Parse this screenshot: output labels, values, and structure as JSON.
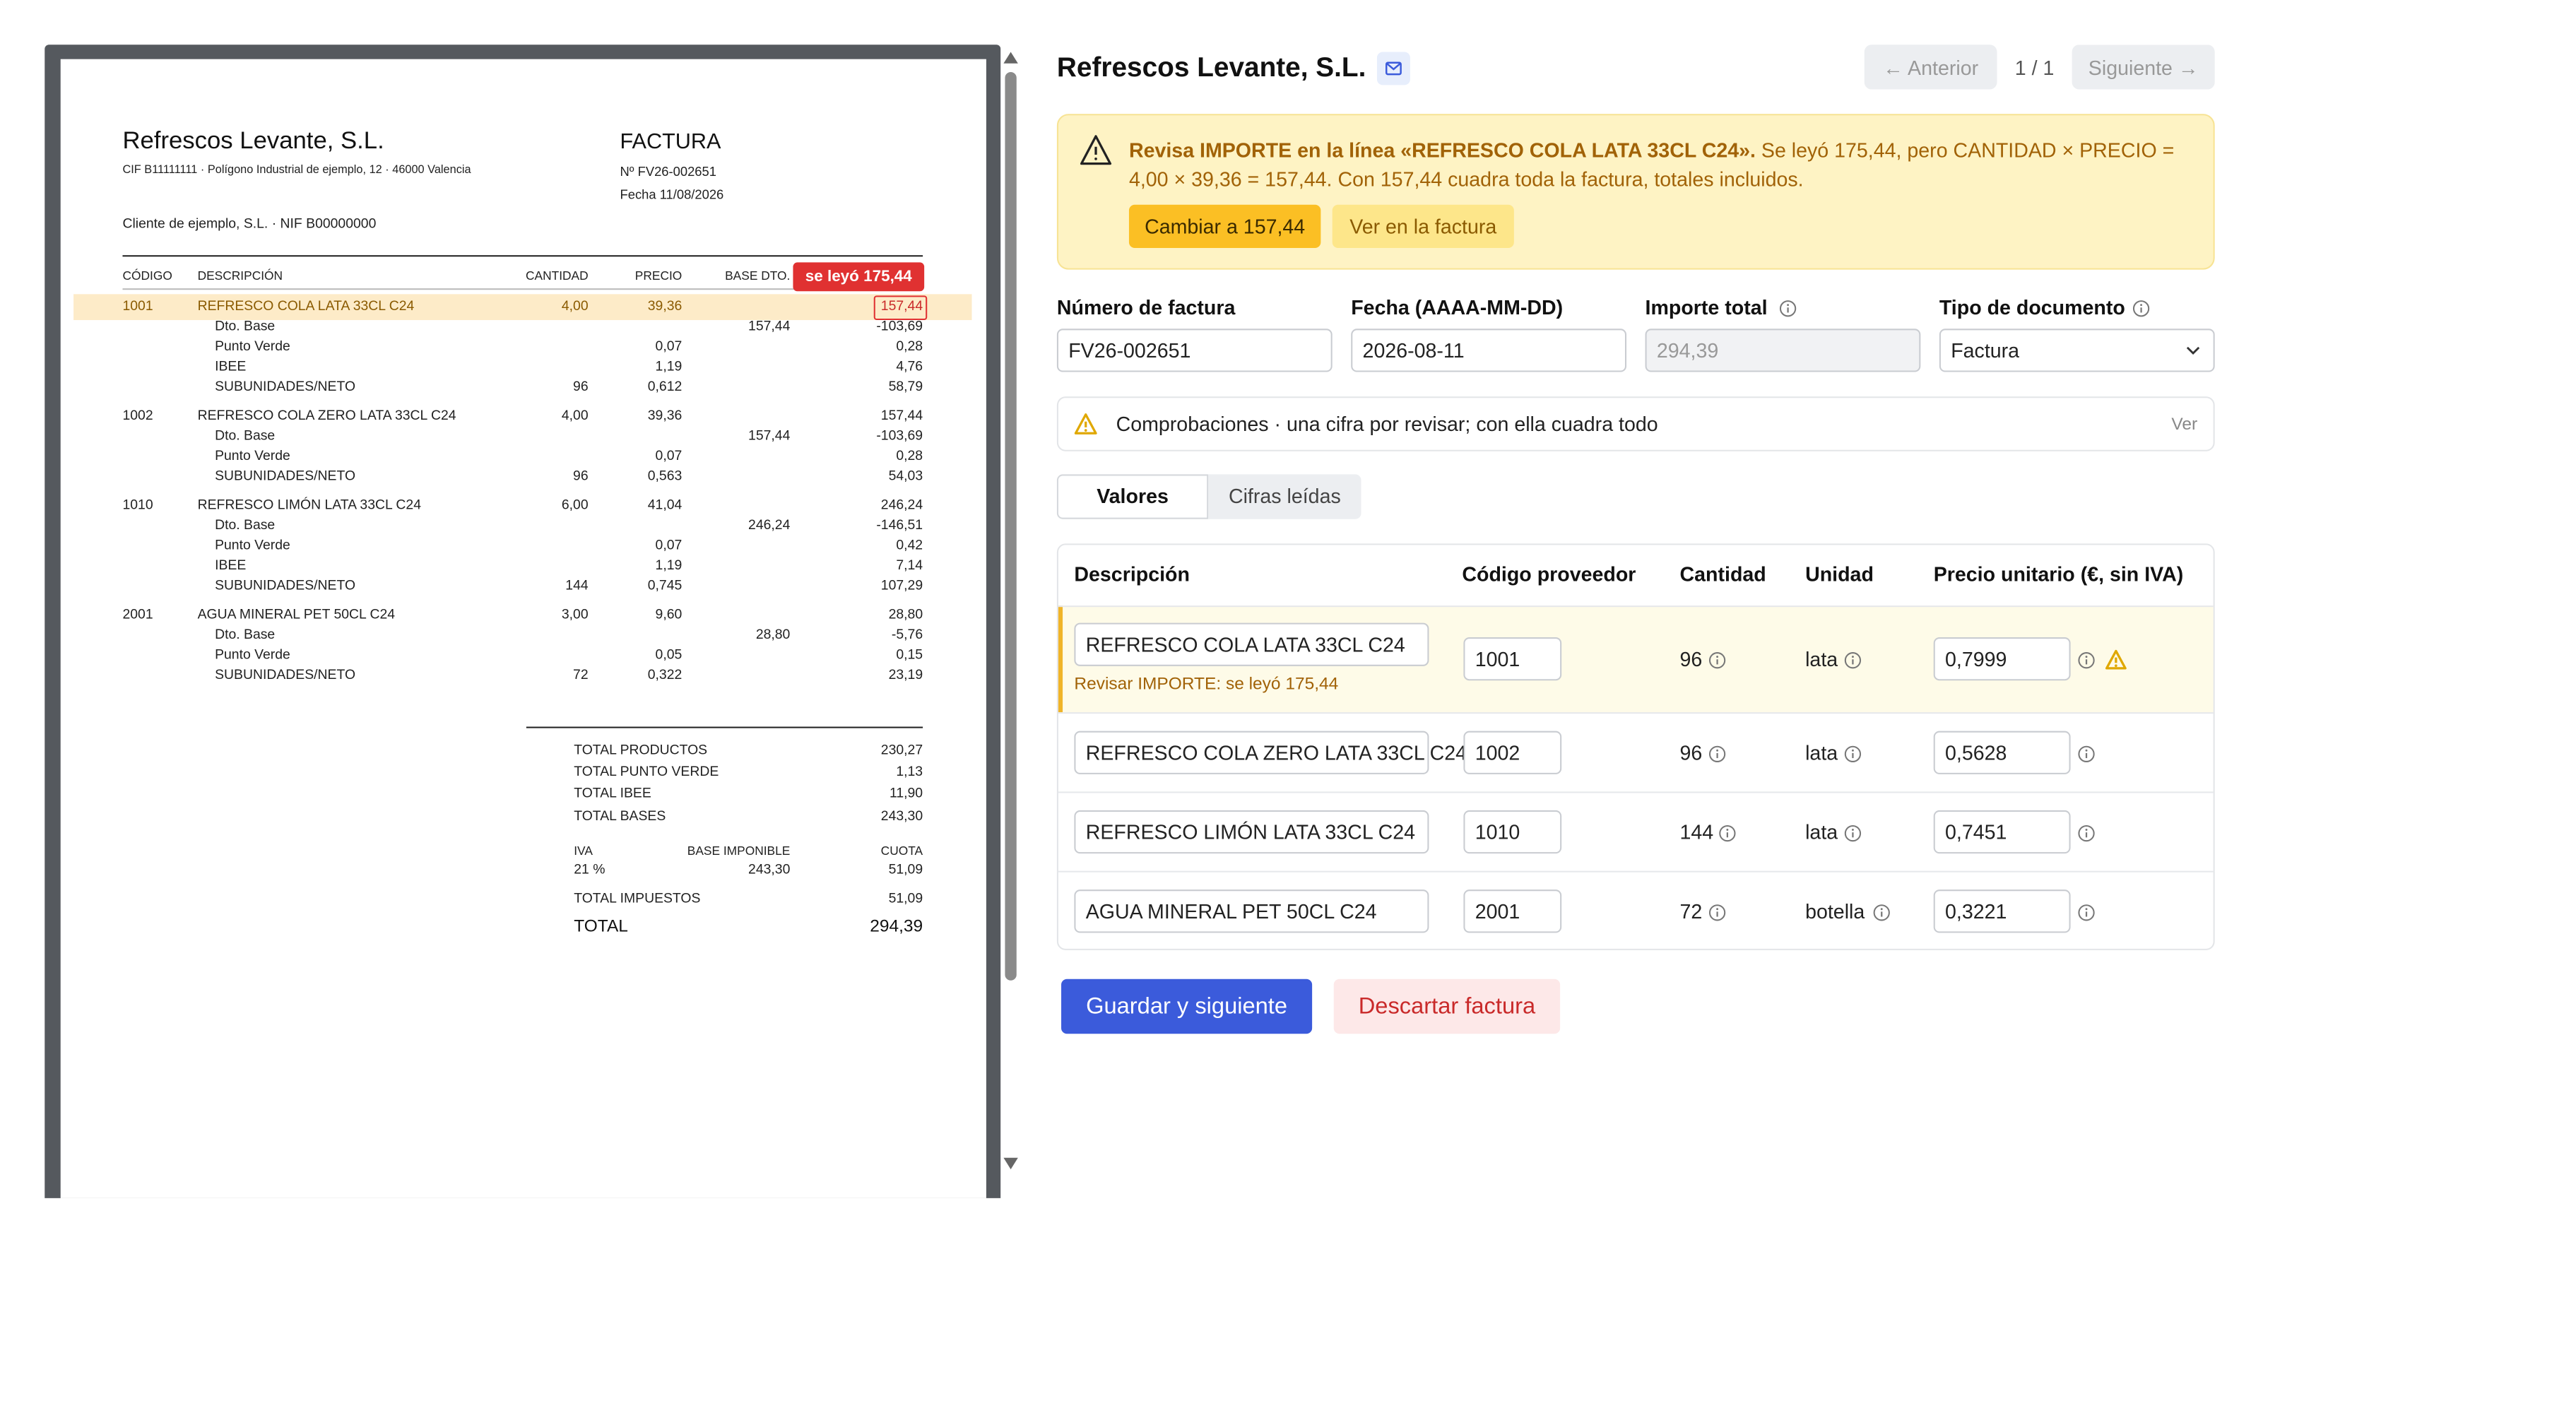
{
  "invoice_preview": {
    "supplier": "Refrescos Levante, S.L.",
    "supplier_details": "CIF B11111111 · Polígono Industrial de ejemplo, 12 · 46000 Valencia",
    "doc_title": "FACTURA",
    "number": "Nº FV26-002651",
    "date": "Fecha 11/08/2026",
    "client": "Cliente de ejemplo, S.L. · NIF B00000000",
    "columns": [
      "CÓDIGO",
      "DESCRIPCIÓN",
      "CANTIDAD",
      "PRECIO",
      "BASE DTO."
    ],
    "flag": "se leyó 175,44",
    "lines": [
      {
        "code": "1001",
        "description": "REFRESCO COLA LATA 33CL C24",
        "quantity": "4,00",
        "price": "39,36",
        "amount": "157,44",
        "details": [
          {
            "label": "Dto. Base",
            "base": "157,44",
            "amount": "-103,69"
          },
          {
            "label": "Punto Verde",
            "price": "0,07",
            "amount": "0,28"
          },
          {
            "label": "IBEE",
            "price": "1,19",
            "amount": "4,76"
          },
          {
            "label": "SUBUNIDADES/NETO",
            "quantity": "96",
            "price": "0,612",
            "amount": "58,79"
          }
        ]
      },
      {
        "code": "1002",
        "description": "REFRESCO COLA ZERO LATA 33CL C24",
        "quantity": "4,00",
        "price": "39,36",
        "amount": "157,44",
        "details": [
          {
            "label": "Dto. Base",
            "base": "157,44",
            "amount": "-103,69"
          },
          {
            "label": "Punto Verde",
            "price": "0,07",
            "amount": "0,28"
          },
          {
            "label": "SUBUNIDADES/NETO",
            "quantity": "96",
            "price": "0,563",
            "amount": "54,03"
          }
        ]
      },
      {
        "code": "1010",
        "description": "REFRESCO LIMÓN LATA 33CL C24",
        "quantity": "6,00",
        "price": "41,04",
        "amount": "246,24",
        "details": [
          {
            "label": "Dto. Base",
            "base": "246,24",
            "amount": "-146,51"
          },
          {
            "label": "Punto Verde",
            "price": "0,07",
            "amount": "0,42"
          },
          {
            "label": "IBEE",
            "price": "1,19",
            "amount": "7,14"
          },
          {
            "label": "SUBUNIDADES/NETO",
            "quantity": "144",
            "price": "0,745",
            "amount": "107,29"
          }
        ]
      },
      {
        "code": "2001",
        "description": "AGUA MINERAL PET 50CL C24",
        "quantity": "3,00",
        "price": "9,60",
        "amount": "28,80",
        "details": [
          {
            "label": "Dto. Base",
            "base": "28,80",
            "amount": "-5,76"
          },
          {
            "label": "Punto Verde",
            "price": "0,05",
            "amount": "0,15"
          },
          {
            "label": "SUBUNIDADES/NETO",
            "quantity": "72",
            "price": "0,322",
            "amount": "23,19"
          }
        ]
      }
    ],
    "totals": [
      {
        "label": "TOTAL PRODUCTOS",
        "value": "230,27"
      },
      {
        "label": "TOTAL PUNTO VERDE",
        "value": "1,13"
      },
      {
        "label": "TOTAL IBEE",
        "value": "11,90"
      },
      {
        "label": "TOTAL BASES",
        "value": "243,30"
      }
    ],
    "tax_header": [
      "IVA",
      "BASE IMPONIBLE",
      "CUOTA"
    ],
    "tax_row": [
      "21 %",
      "243,30",
      "51,09"
    ],
    "total_taxes": {
      "label": "TOTAL IMPUESTOS",
      "value": "51,09"
    },
    "grand_total": {
      "label": "TOTAL",
      "value": "294,39"
    }
  },
  "review": {
    "title": "Refrescos Levante, S.L.",
    "nav": {
      "previous": "← Anterior",
      "position": "1 / 1",
      "next": "Siguiente →"
    },
    "alert": {
      "headline": "Revisa IMPORTE en la línea «REFRESCO COLA LATA 33CL C24».",
      "text": "Se leyó 175,44, pero CANTIDAD × PRECIO = 4,00 × 39,36 = 157,44. Con 157,44 cuadra toda la factura, totales incluidos.",
      "actions": [
        "Cambiar a 157,44",
        "Ver en la factura"
      ]
    },
    "fields": [
      {
        "label": "Número de factura",
        "value": "FV26-002651"
      },
      {
        "label": "Fecha (AAAA-MM-DD)",
        "value": "2026-08-11"
      },
      {
        "label": "Importe total",
        "value": "294,39"
      },
      {
        "label": "Tipo de documento",
        "value": "Factura"
      }
    ],
    "checks": {
      "text": "Comprobaciones · una cifra por revisar; con ella cuadra todo",
      "link": "Ver"
    },
    "tabs": [
      "Valores",
      "Cifras leídas"
    ],
    "table": {
      "headers": [
        "Descripción",
        "Código proveedor",
        "Cantidad",
        "Unidad",
        "Precio unitario (€, sin IVA)"
      ],
      "rows": [
        {
          "description": "REFRESCO COLA LATA 33CL C24",
          "code": "1001",
          "quantity": "96",
          "unit": "lata",
          "price": "0,7999",
          "note": "Revisar IMPORTE: se leyó 175,44"
        },
        {
          "description": "REFRESCO COLA ZERO LATA 33CL C24",
          "code": "1002",
          "quantity": "96",
          "unit": "lata",
          "price": "0,5628"
        },
        {
          "description": "REFRESCO LIMÓN LATA 33CL C24",
          "code": "1010",
          "quantity": "144",
          "unit": "lata",
          "price": "0,7451"
        },
        {
          "description": "AGUA MINERAL PET 50CL C24",
          "code": "2001",
          "quantity": "72",
          "unit": "botella",
          "price": "0,3221"
        }
      ]
    },
    "actions": [
      "Guardar y siguiente",
      "Descartar factura"
    ]
  }
}
